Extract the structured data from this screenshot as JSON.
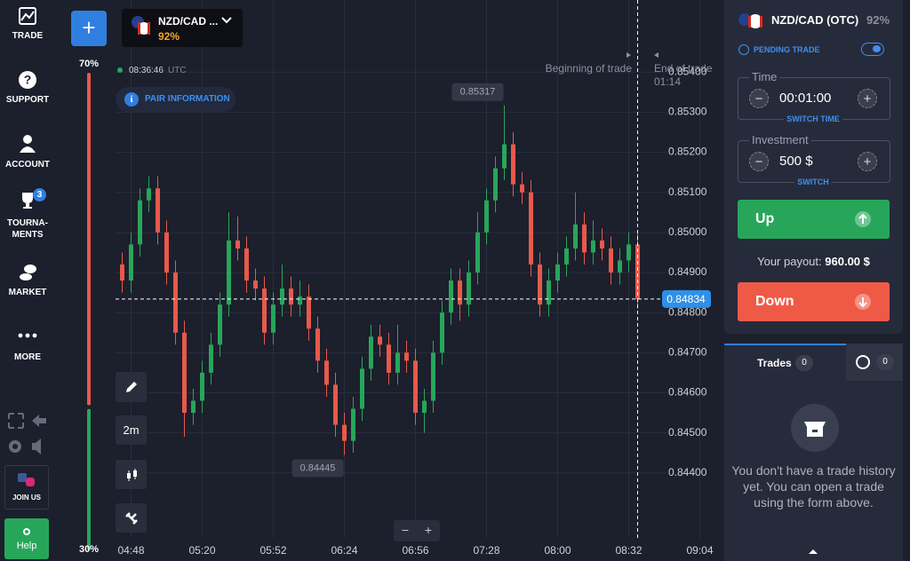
{
  "sidebar": {
    "items": [
      "TRADE",
      "SUPPORT",
      "ACCOUNT",
      "TOURNA-MENTS",
      "MARKET",
      "MORE"
    ],
    "tournaments_badge": "3",
    "join": "JOIN US",
    "help": "Help"
  },
  "header": {
    "add_button": "+",
    "asset": "NZD/CAD ...",
    "payout": "92%"
  },
  "chart_data": {
    "type": "candlestick",
    "clock": "08:36:46",
    "timezone": "UTC",
    "pair_info": "PAIR INFORMATION",
    "trade_start_label": "Beginning of trade",
    "trade_end_label": "End of trade",
    "countdown": "01:14",
    "timeframe": "2m",
    "zoom_out": "−",
    "zoom_in": "+",
    "up_color": "#27a65a",
    "down_color": "#e8594a",
    "grid": true,
    "x": [
      284,
      288,
      292,
      296,
      300,
      304,
      308,
      312,
      316,
      320,
      324,
      328,
      332,
      336,
      340,
      344,
      348,
      352,
      356,
      360,
      364,
      368,
      372,
      376,
      380,
      384,
      388,
      392,
      396,
      400,
      404,
      408,
      412,
      416,
      420,
      424,
      428,
      432,
      436,
      440,
      444,
      448,
      452,
      456,
      460,
      464,
      468,
      472,
      476,
      480,
      484,
      488,
      492,
      496,
      500,
      504,
      508,
      512,
      516
    ],
    "open": [
      0.8492,
      0.8488,
      0.8497,
      0.8508,
      0.8511,
      0.85,
      0.849,
      0.8475,
      0.8455,
      0.8458,
      0.8465,
      0.8472,
      0.8482,
      0.8498,
      0.8496,
      0.8488,
      0.8486,
      0.8475,
      0.8482,
      0.8486,
      0.8482,
      0.8484,
      0.8476,
      0.8468,
      0.8462,
      0.8452,
      0.8448,
      0.8456,
      0.8466,
      0.8474,
      0.8472,
      0.8465,
      0.847,
      0.8468,
      0.8455,
      0.8458,
      0.847,
      0.848,
      0.8488,
      0.8482,
      0.849,
      0.85,
      0.8508,
      0.8516,
      0.8522,
      0.8512,
      0.851,
      0.8492,
      0.8482,
      0.8488,
      0.8492,
      0.8496,
      0.8502,
      0.8495,
      0.8498,
      0.8496,
      0.849,
      0.8493,
      0.8497
    ],
    "high": [
      0.8495,
      0.85,
      0.8511,
      0.8514,
      0.8514,
      0.8503,
      0.8493,
      0.8478,
      0.8461,
      0.8468,
      0.8475,
      0.8485,
      0.8505,
      0.8504,
      0.8499,
      0.8491,
      0.8489,
      0.8485,
      0.8492,
      0.8489,
      0.8488,
      0.8487,
      0.8479,
      0.8471,
      0.8465,
      0.8455,
      0.8459,
      0.8469,
      0.8477,
      0.8477,
      0.8475,
      0.8477,
      0.8473,
      0.8471,
      0.8461,
      0.8473,
      0.8483,
      0.8491,
      0.8491,
      0.8493,
      0.8505,
      0.8511,
      0.8519,
      0.85317,
      0.8525,
      0.8515,
      0.8513,
      0.8495,
      0.8491,
      0.8495,
      0.8499,
      0.851,
      0.8505,
      0.8503,
      0.8501,
      0.8499,
      0.8496,
      0.85,
      0.85
    ],
    "low": [
      0.8485,
      0.8485,
      0.8494,
      0.8505,
      0.8497,
      0.8487,
      0.8472,
      0.8449,
      0.8452,
      0.8455,
      0.8462,
      0.8469,
      0.8479,
      0.8493,
      0.8485,
      0.8483,
      0.8472,
      0.8472,
      0.8479,
      0.8479,
      0.8479,
      0.8473,
      0.8465,
      0.8459,
      0.8449,
      0.84445,
      0.8445,
      0.8453,
      0.8463,
      0.8469,
      0.8462,
      0.8462,
      0.8465,
      0.8452,
      0.845,
      0.8455,
      0.8467,
      0.8477,
      0.8478,
      0.8479,
      0.8487,
      0.8497,
      0.8505,
      0.8513,
      0.8509,
      0.8507,
      0.8489,
      0.8479,
      0.8479,
      0.8485,
      0.8489,
      0.8493,
      0.8492,
      0.8492,
      0.8493,
      0.8487,
      0.8487,
      0.849,
      0.8481
    ],
    "close": [
      0.8488,
      0.8497,
      0.8508,
      0.8511,
      0.85,
      0.849,
      0.8475,
      0.8455,
      0.8458,
      0.8465,
      0.8472,
      0.8482,
      0.8498,
      0.8496,
      0.8488,
      0.8486,
      0.8475,
      0.8482,
      0.8486,
      0.8482,
      0.8484,
      0.8476,
      0.8468,
      0.8462,
      0.8452,
      0.8448,
      0.8456,
      0.8466,
      0.8474,
      0.8472,
      0.8465,
      0.847,
      0.8468,
      0.8455,
      0.8458,
      0.847,
      0.848,
      0.8488,
      0.8482,
      0.849,
      0.85,
      0.8508,
      0.8516,
      0.8522,
      0.8512,
      0.851,
      0.8492,
      0.8482,
      0.8488,
      0.8492,
      0.8496,
      0.8502,
      0.8495,
      0.8498,
      0.8496,
      0.849,
      0.8493,
      0.8497,
      0.84834
    ],
    "xlim": [
      281,
      549
    ],
    "xticks": [
      {
        "value": 288,
        "label": "04:48"
      },
      {
        "value": 320,
        "label": "05:20"
      },
      {
        "value": 352,
        "label": "05:52"
      },
      {
        "value": 384,
        "label": "06:24"
      },
      {
        "value": 416,
        "label": "06:56"
      },
      {
        "value": 448,
        "label": "07:28"
      },
      {
        "value": 480,
        "label": "08:00"
      },
      {
        "value": 512,
        "label": "08:32"
      },
      {
        "value": 544,
        "label": "09:04"
      }
    ],
    "ylim": [
      0.8424,
      0.8558
    ],
    "yticks": [
      {
        "value": 0.854,
        "label": "0.85400"
      },
      {
        "value": 0.853,
        "label": "0.85300"
      },
      {
        "value": 0.852,
        "label": "0.85200"
      },
      {
        "value": 0.851,
        "label": "0.85100"
      },
      {
        "value": 0.85,
        "label": "0.85000"
      },
      {
        "value": 0.849,
        "label": "0.84900"
      },
      {
        "value": 0.848,
        "label": "0.84800"
      },
      {
        "value": 0.847,
        "label": "0.84700"
      },
      {
        "value": 0.846,
        "label": "0.84600"
      },
      {
        "value": 0.845,
        "label": "0.84500"
      },
      {
        "value": 0.844,
        "label": "0.84400"
      }
    ],
    "current_price": 0.84834,
    "max_price": 0.85317,
    "min_price": 0.84445,
    "sentiment": [
      {
        "value": 70,
        "label": "70%",
        "color": "#e8594a"
      },
      {
        "value": 30,
        "label": "30%",
        "color": "#27a65a"
      }
    ]
  },
  "trade_panel": {
    "asset": "NZD/CAD (OTC)",
    "payout": "92%",
    "pending": "PENDING TRADE",
    "time_label": "Time",
    "time": "00:01:00",
    "switch_time": "SWITCH TIME",
    "investment_label": "Investment",
    "investment": "500 $",
    "switch": "SWITCH",
    "up": "Up",
    "payout_label": "Your payout:",
    "payout_value": "960.00 $",
    "down": "Down"
  },
  "trades_panel": {
    "tab": "Trades",
    "count": "0",
    "pending_count": "0",
    "empty": "You don't have a trade history yet. You can open a trade using the form above."
  }
}
